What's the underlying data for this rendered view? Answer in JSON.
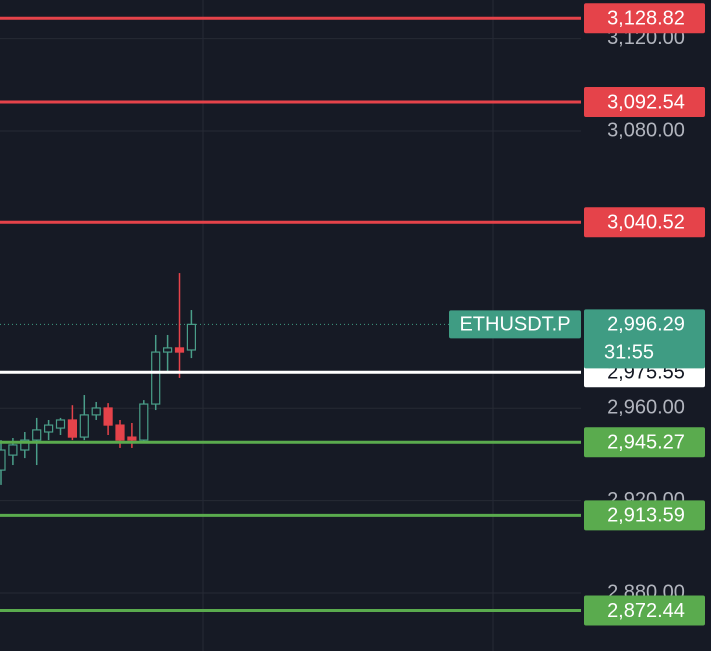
{
  "chart_data": {
    "type": "candlestick",
    "ylim": [
      2854.9,
      3136.7
    ],
    "yticks": [
      {
        "value": 3120,
        "label": "3,120.00"
      },
      {
        "value": 3080,
        "label": "3,080.00"
      },
      {
        "value": 2960,
        "label": "2,960.00"
      },
      {
        "value": 2920,
        "label": "2,920.00"
      },
      {
        "value": 2880,
        "label": "2,880.00"
      }
    ],
    "grid": true,
    "up_color": "#4a9e89",
    "down_color": "#e5434a",
    "categories": [
      null,
      null,
      null,
      null,
      null,
      null,
      null,
      null,
      null,
      null,
      null,
      null,
      null,
      null,
      null,
      null,
      null
    ],
    "open": [
      2933.2,
      2939.7,
      2941.9,
      2946.2,
      2949.7,
      2951.4,
      2954.9,
      2947.5,
      2957.1,
      2960.1,
      2952.7,
      2947.5,
      2946.2,
      2961.8,
      2984.3,
      2986.1,
      2985.2
    ],
    "high": [
      2946.2,
      2947.1,
      2949.7,
      2955.8,
      2954.9,
      2955.8,
      2961.3,
      2965.7,
      2962.7,
      2962.2,
      2954.9,
      2953.6,
      2963.5,
      2991.7,
      2991.7,
      3018.5,
      3002.5
    ],
    "low": [
      2926.8,
      2935.4,
      2938.4,
      2935.4,
      2946.2,
      2948.4,
      2946.2,
      2946.2,
      2954.9,
      2948.4,
      2942.8,
      2942.8,
      2945.4,
      2959.2,
      2975.7,
      2973.1,
      2981.7
    ],
    "close": [
      2941.9,
      2944.1,
      2946.2,
      2950.6,
      2952.7,
      2954.9,
      2947.5,
      2957.1,
      2960.1,
      2952.7,
      2946.2,
      2946.2,
      2961.8,
      2984.3,
      2986.1,
      2984.3,
      2996.29
    ],
    "levels": [
      {
        "value": 3128.82,
        "label": "3,128.82",
        "color": "#e5434a"
      },
      {
        "value": 3092.54,
        "label": "3,092.54",
        "color": "#e5434a"
      },
      {
        "value": 3040.52,
        "label": "3,040.52",
        "color": "#e5434a"
      },
      {
        "value": 2975.55,
        "label": "2,975.55",
        "color": "#ffffff"
      },
      {
        "value": 2945.27,
        "label": "2,945.27",
        "color": "#5aab4e"
      },
      {
        "value": 2913.59,
        "label": "2,913.59",
        "color": "#5aab4e"
      },
      {
        "value": 2872.44,
        "label": "2,872.44",
        "color": "#5aab4e"
      }
    ],
    "symbol": "ETHUSDT.P",
    "last_price": {
      "value": 2996.29,
      "label": "2,996.29"
    },
    "countdown": "31:55",
    "last_color": "#3f9c83"
  }
}
